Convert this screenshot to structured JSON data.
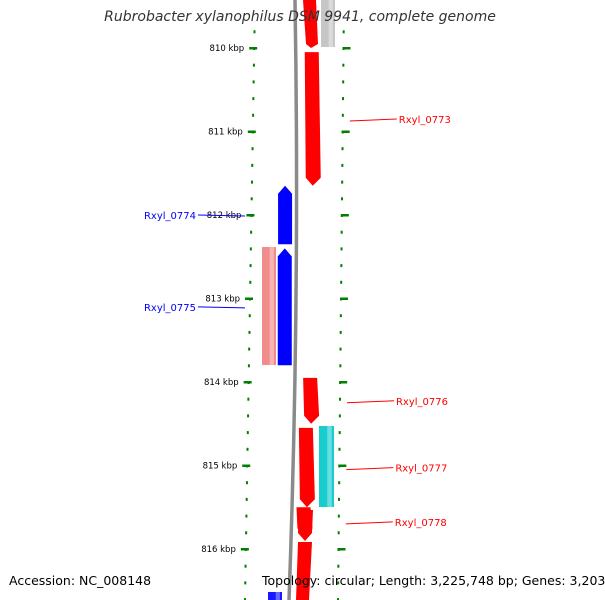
{
  "title": "Rubrobacter xylanophilus DSM 9941, complete genome",
  "footer": {
    "accession": "Accession: NC_008148",
    "summary": "Topology: circular; Length: 3,225,748 bp; Genes: 3,203"
  },
  "colors": {
    "forward_gene": "#ff0000",
    "reverse_gene": "#0000ff",
    "rna_gene": "#00c8c8",
    "faded_forward": "#f08080",
    "faded_grey": "#c0c0c0",
    "tick": "#008000",
    "backbone": "#808080"
  },
  "ruler": {
    "unit": "kbp",
    "ticks": [
      {
        "kb": 810,
        "label": "810 kbp"
      },
      {
        "kb": 811,
        "label": "811 kbp"
      },
      {
        "kb": 812,
        "label": "812 kbp"
      },
      {
        "kb": 813,
        "label": "813 kbp"
      },
      {
        "kb": 814,
        "label": "814 kbp"
      },
      {
        "kb": 815,
        "label": "815 kbp"
      },
      {
        "kb": 816,
        "label": "816 kbp"
      }
    ]
  },
  "genes": [
    {
      "label": "Rxyl_0773",
      "strand": "+",
      "start_kb": 810.05,
      "end_kb": 811.65
    },
    {
      "label": "Rxyl_0774",
      "strand": "-",
      "start_kb": 811.65,
      "end_kb": 812.35
    },
    {
      "label": "Rxyl_0775",
      "strand": "-",
      "start_kb": 812.4,
      "end_kb": 813.8
    },
    {
      "label": "Rxyl_0776",
      "strand": "+",
      "start_kb": 813.95,
      "end_kb": 814.5
    },
    {
      "label": "Rxyl_0777",
      "strand": "+",
      "start_kb": 814.55,
      "end_kb": 815.5
    },
    {
      "label": "Rxyl_0778",
      "strand": "+",
      "start_kb": 815.5,
      "end_kb": 815.85
    }
  ]
}
